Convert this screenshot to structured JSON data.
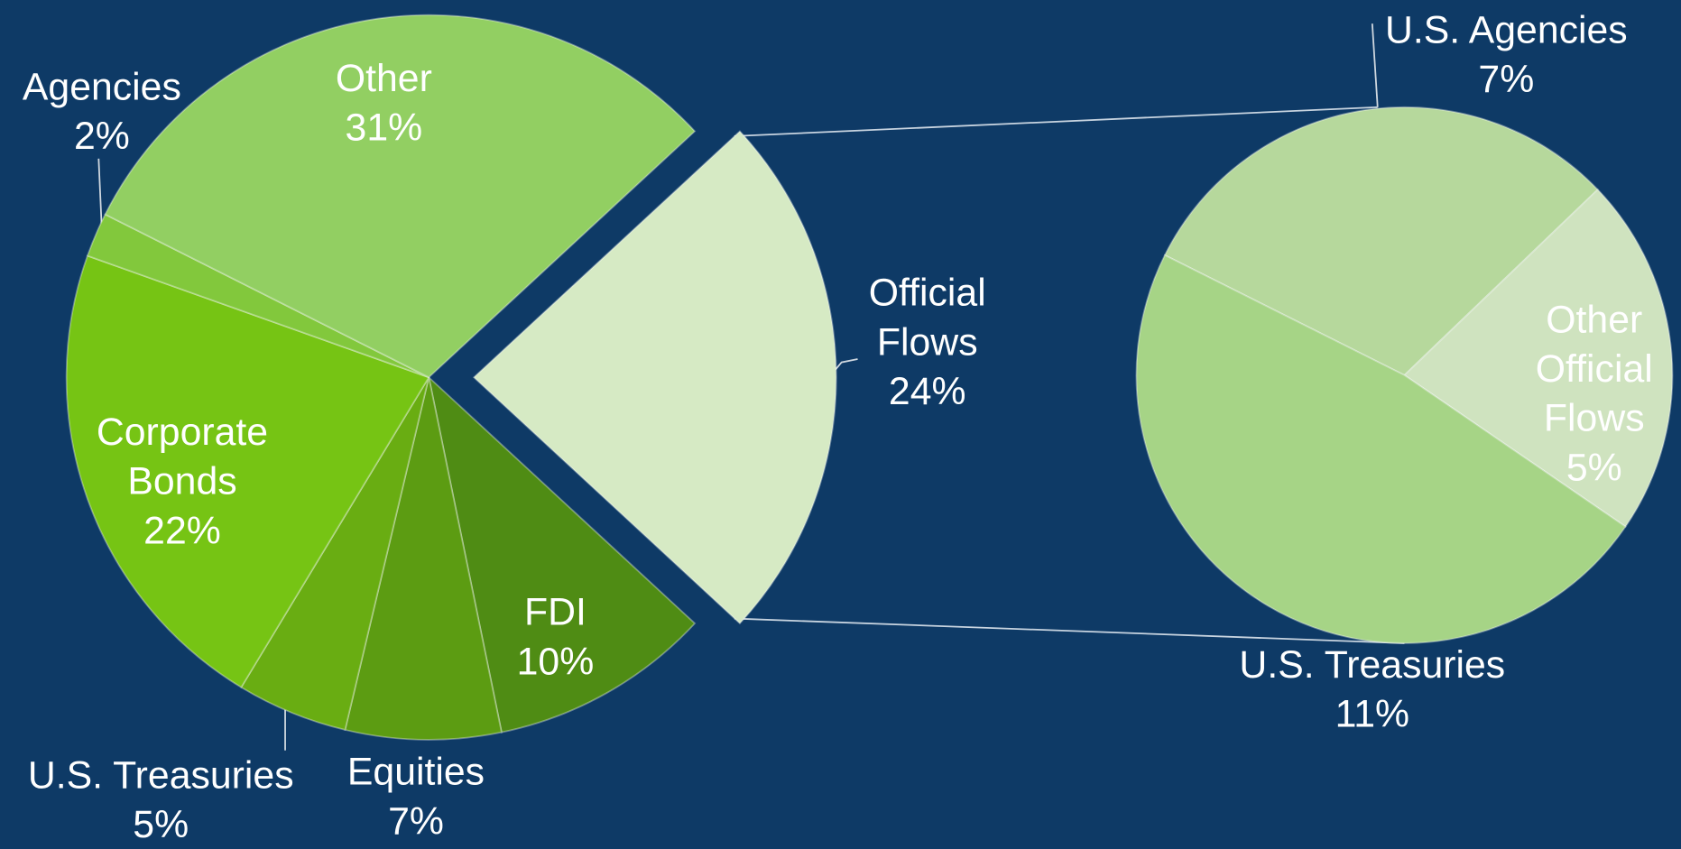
{
  "chart_data": [
    {
      "type": "pie",
      "categories": [
        "Official Flows",
        "FDI",
        "Equities",
        "U.S. Treasuries",
        "Corporate Bonds",
        "Agencies",
        "Other"
      ],
      "values": [
        24,
        10,
        7,
        5,
        22,
        2,
        31
      ],
      "value_labels": [
        "24%",
        "10%",
        "7%",
        "5%",
        "22%",
        "2%",
        "31%"
      ],
      "colors": [
        "#d6eac4",
        "#4f8c14",
        "#5c9c12",
        "#69ad12",
        "#76c414",
        "#82c83c",
        "#92cf62"
      ]
    },
    {
      "type": "pie",
      "categories": [
        "U.S. Agencies",
        "Other Official Flows",
        "U.S. Treasuries"
      ],
      "values": [
        7,
        5,
        11
      ],
      "value_labels": [
        "7%",
        "5%",
        "11%"
      ],
      "colors": [
        "#b6d89c",
        "#cfe3bf",
        "#a6d486"
      ]
    }
  ]
}
